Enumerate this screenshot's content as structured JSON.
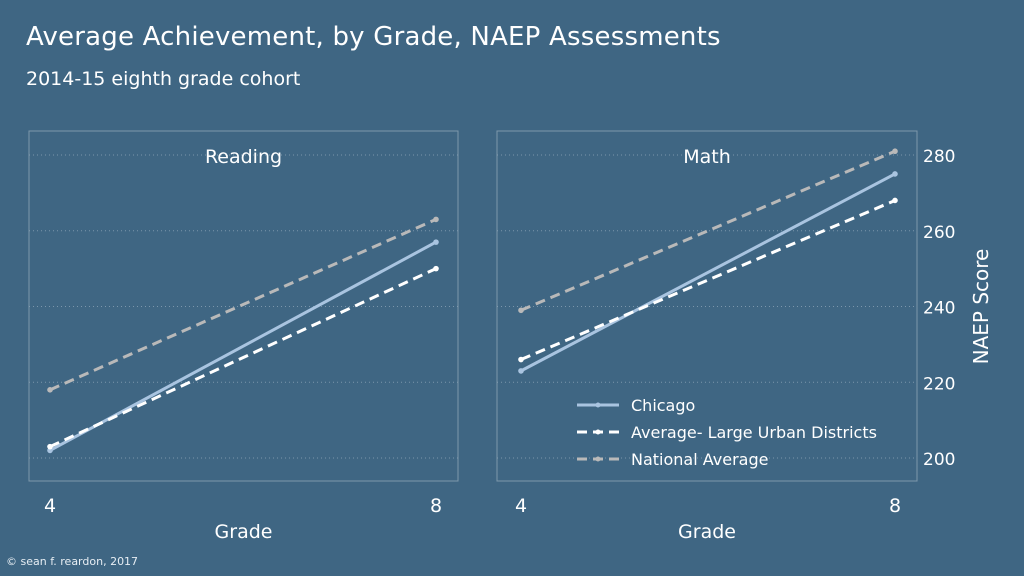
{
  "header": {
    "title": "Average Achievement, by Grade, NAEP Assessments",
    "subtitle": "2014-15 eighth grade cohort"
  },
  "footer": {
    "credit": "© sean f. reardon, 2017"
  },
  "colors": {
    "background": "#3f6683",
    "chicago": "#a9c4e0",
    "large_urban": "#ffffff",
    "national": "#b9b9b9",
    "grid": "#8aa3b6",
    "panel_border": "#7e98ab"
  },
  "chart_data": [
    {
      "type": "line",
      "panel_label": "Reading",
      "x": [
        4,
        8
      ],
      "xlabel": "Grade",
      "ylabel": "",
      "ylim": [
        195,
        275
      ],
      "yticks": [
        200,
        220,
        240,
        260
      ],
      "grid": true,
      "series": [
        {
          "name": "Chicago",
          "values": [
            202,
            257
          ]
        },
        {
          "name": "Average- Large Urban Districts",
          "values": [
            203,
            250
          ]
        },
        {
          "name": "National Average",
          "values": [
            218,
            263
          ]
        }
      ]
    },
    {
      "type": "line",
      "panel_label": "Math",
      "x": [
        4,
        8
      ],
      "xlabel": "Grade",
      "ylabel": "NAEP Score",
      "ylim": [
        195,
        285
      ],
      "yticks": [
        200,
        220,
        240,
        260,
        280
      ],
      "grid": true,
      "legend_position": "bottom-center",
      "series": [
        {
          "name": "Chicago",
          "values": [
            223,
            275
          ]
        },
        {
          "name": "Average- Large Urban Districts",
          "values": [
            226,
            268
          ]
        },
        {
          "name": "National Average",
          "values": [
            239,
            281
          ]
        }
      ]
    }
  ]
}
